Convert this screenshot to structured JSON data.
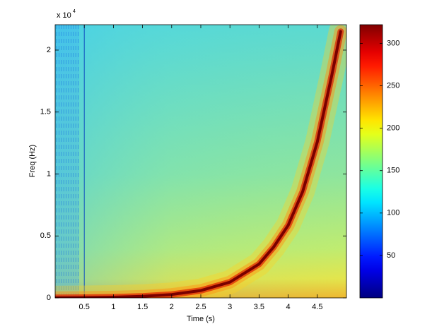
{
  "chart_data": {
    "type": "spectrogram",
    "x_label": "Time (s)",
    "y_label": "Freq (Hz)",
    "y_exponent": {
      "base": "x 10",
      "power": "4"
    },
    "xlim": [
      0,
      5
    ],
    "xticks": [
      0.5,
      1,
      1.5,
      2,
      2.5,
      3,
      3.5,
      4,
      4.5
    ],
    "ylim": [
      0,
      22050
    ],
    "yticks": [
      {
        "value": 0,
        "label": "0"
      },
      {
        "value": 5000,
        "label": "0.5"
      },
      {
        "value": 10000,
        "label": "1"
      },
      {
        "value": 15000,
        "label": "1.5"
      },
      {
        "value": 20000,
        "label": "2"
      }
    ],
    "colormap": "jet",
    "clim": [
      0,
      322
    ],
    "cticks": [
      50,
      100,
      150,
      200,
      250,
      300
    ],
    "ridge": {
      "color": "#7a0000",
      "x": [
        0,
        0.5,
        1,
        1.5,
        2,
        2.5,
        3,
        3.5,
        3.75,
        4,
        4.25,
        4.5,
        4.75,
        4.9
      ],
      "y": [
        13,
        28,
        59,
        127,
        274,
        590,
        1270,
        2730,
        4100,
        5860,
        8600,
        12600,
        18000,
        21500
      ]
    }
  }
}
